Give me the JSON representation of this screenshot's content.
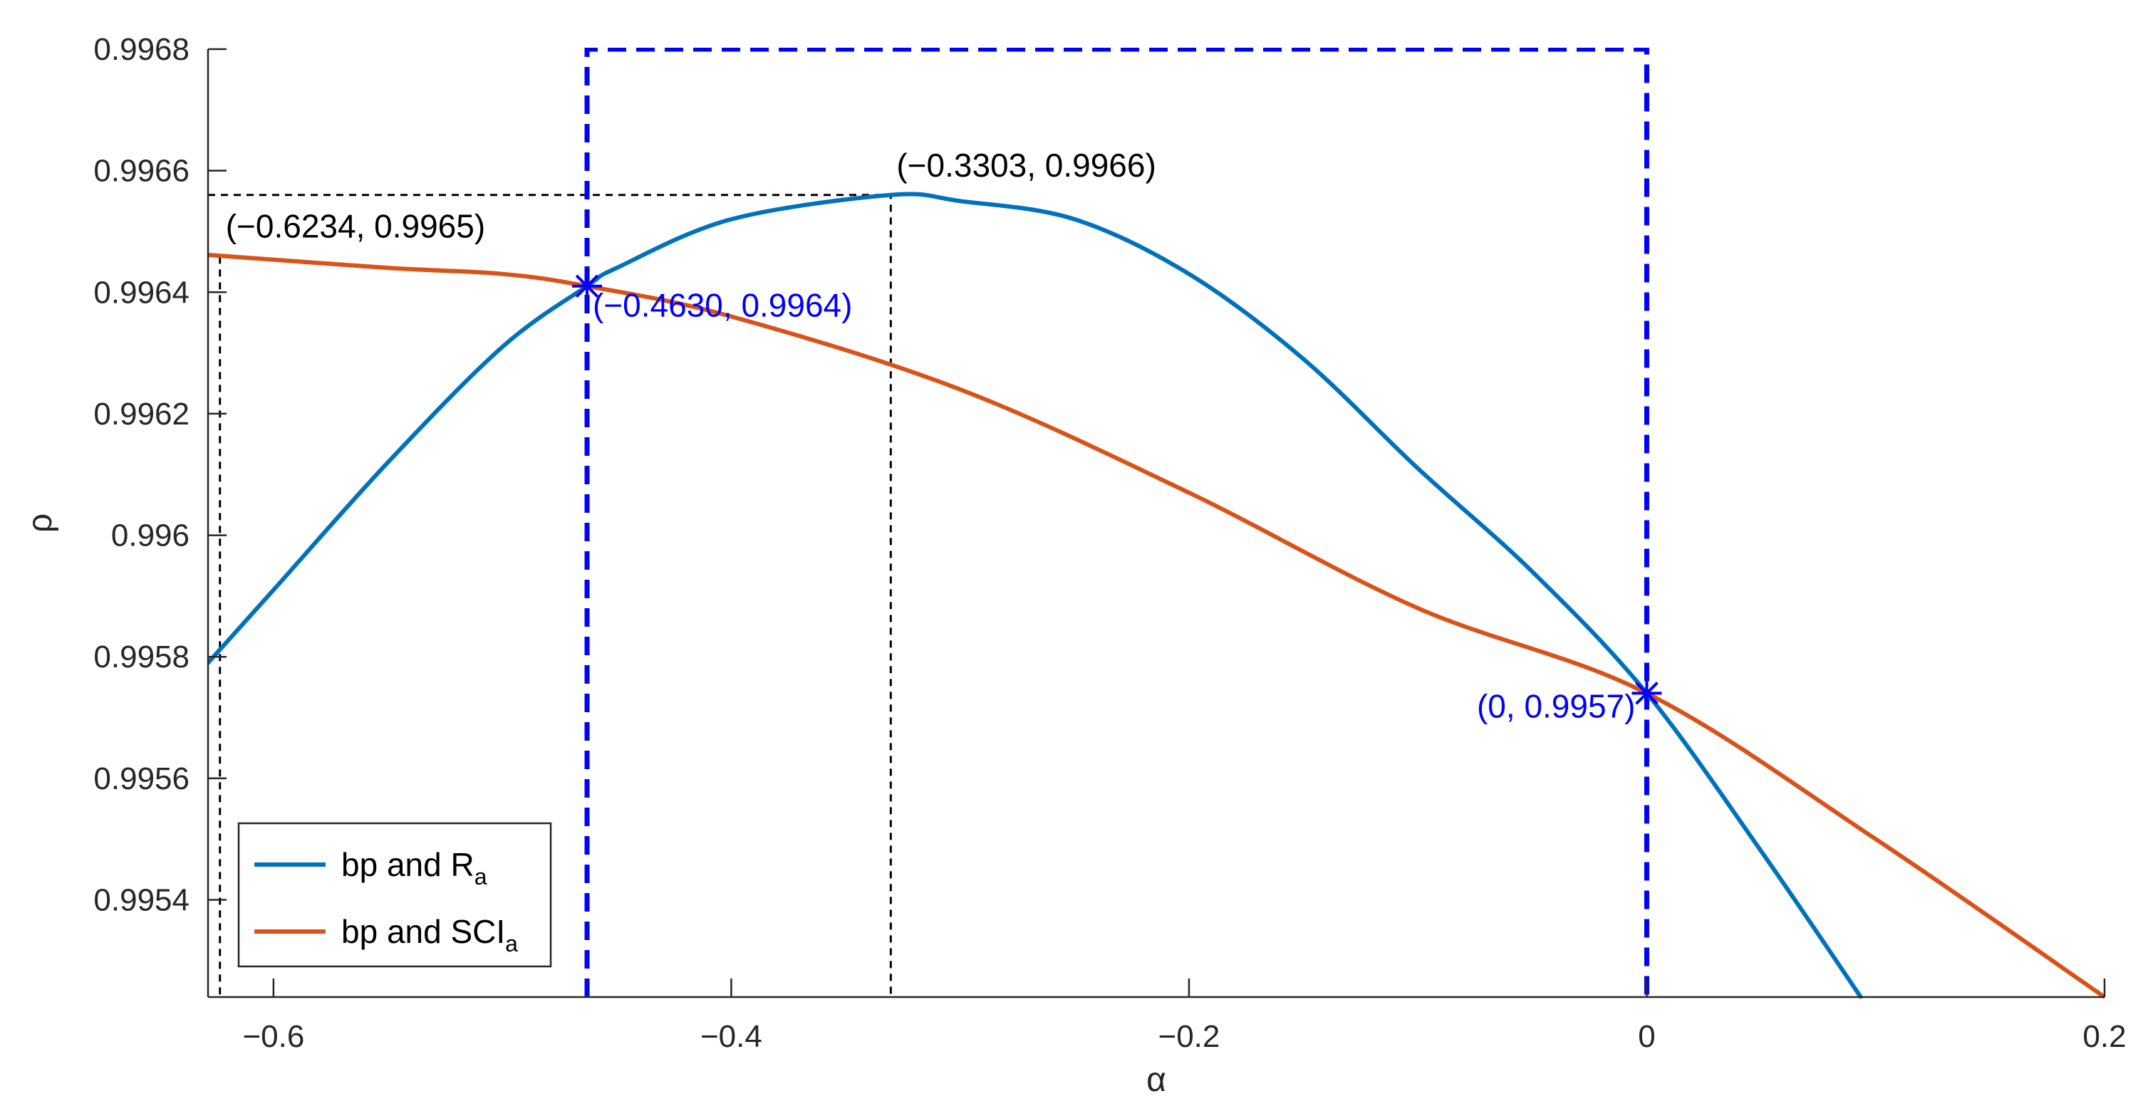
{
  "chart_data": {
    "type": "line",
    "title": "",
    "xlabel": "α",
    "ylabel": "ρ",
    "xlim": [
      -0.6286,
      0.2
    ],
    "ylim": [
      0.99524,
      0.9968
    ],
    "grid": false,
    "legend_position": "bottom-left",
    "x_ticks": [
      -0.6,
      -0.4,
      -0.2,
      0,
      0.2
    ],
    "x_tick_labels": [
      "−0.6",
      "−0.4",
      "−0.2",
      "0",
      "0.2"
    ],
    "y_ticks": [
      0.9954,
      0.9956,
      0.9958,
      0.996,
      0.9962,
      0.9964,
      0.9966,
      0.9968
    ],
    "y_tick_labels": [
      "0.9954",
      "0.9956",
      "0.9958",
      "0.996",
      "0.9962",
      "0.9964",
      "0.9966",
      "0.9968"
    ],
    "series": [
      {
        "name": "bp and R",
        "name_sub": "a",
        "color": "#0072bd",
        "x": [
          -0.6286,
          -0.6,
          -0.55,
          -0.5,
          -0.463,
          -0.45,
          -0.4,
          -0.3303,
          -0.3,
          -0.25,
          -0.2,
          -0.15,
          -0.1,
          -0.05,
          0,
          0.05,
          0.0935
        ],
        "y": [
          0.99579,
          0.99591,
          0.99612,
          0.99631,
          0.99641,
          0.99644,
          0.99652,
          0.99656,
          0.99655,
          0.99652,
          0.99643,
          0.99629,
          0.99611,
          0.99594,
          0.99574,
          0.99548,
          0.99524
        ]
      },
      {
        "name": "bp and SCI",
        "name_sub": "a",
        "color": "#d95319",
        "x": [
          -0.6286,
          -0.6234,
          -0.55,
          -0.5,
          -0.463,
          -0.4,
          -0.3,
          -0.2,
          -0.1,
          0,
          0.1,
          0.2
        ],
        "y": [
          0.99646,
          0.99646,
          0.99644,
          0.99643,
          0.99641,
          0.99636,
          0.99624,
          0.99607,
          0.99588,
          0.99574,
          0.9955,
          0.99524
        ]
      }
    ],
    "reference_lines": [
      {
        "style": "black-dashed",
        "points": [
          [
            -0.6286,
            0.99656
          ],
          [
            -0.3303,
            0.99656
          ],
          [
            -0.3303,
            0.99524
          ]
        ]
      },
      {
        "style": "black-dashed",
        "points": [
          [
            -0.6286,
            0.99646
          ],
          [
            -0.6234,
            0.99646
          ],
          [
            -0.6234,
            0.99524
          ]
        ]
      },
      {
        "style": "blue-dashed",
        "points": [
          [
            -0.463,
            0.99524
          ],
          [
            -0.463,
            0.9968
          ],
          [
            0,
            0.9968
          ],
          [
            0,
            0.99524
          ]
        ]
      }
    ],
    "markers": [
      {
        "x": -0.463,
        "y": 0.99641,
        "color": "#0000ff",
        "shape": "asterisk"
      },
      {
        "x": 0,
        "y": 0.99574,
        "color": "#0000ff",
        "shape": "asterisk"
      }
    ],
    "annotations": [
      {
        "text": "(−0.3303, 0.9966)",
        "x": -0.3303,
        "y": 0.99656,
        "color": "#000000",
        "anchor": "start",
        "dy": -3e-05
      },
      {
        "text": "(−0.6234, 0.9965)",
        "x": -0.6234,
        "y": 0.99646,
        "color": "#000000",
        "anchor": "start",
        "dy": -3e-05
      },
      {
        "text": "(−0.4630, 0.9964)",
        "x": -0.463,
        "y": 0.99641,
        "color": "#0000ff",
        "anchor": "start",
        "dy": 5e-05
      },
      {
        "text": "(0, 0.9957)",
        "x": 0,
        "y": 0.99574,
        "color": "#0000ff",
        "anchor": "end",
        "dy": 4e-05
      }
    ]
  }
}
